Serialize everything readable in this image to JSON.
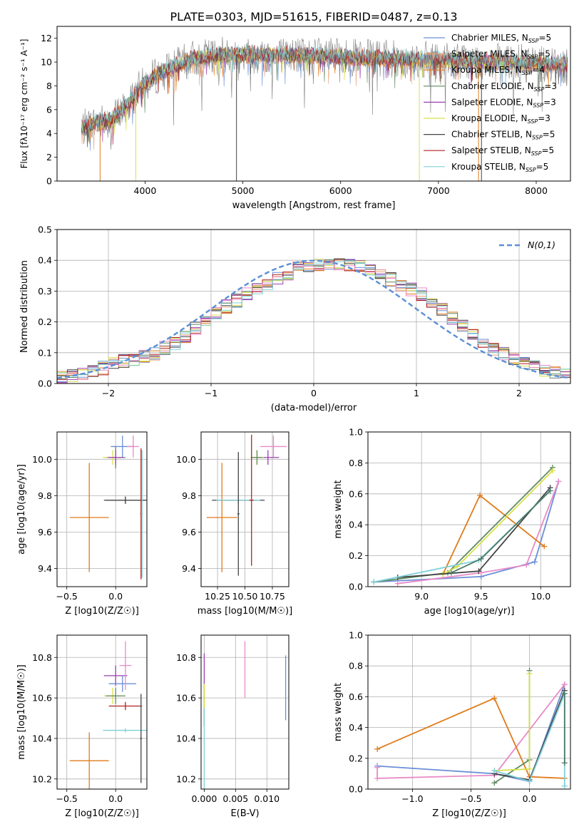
{
  "figure": {
    "title": "PLATE=0303, MJD=51615, FIBERID=0487, z=0.13"
  },
  "chart_data": [
    {
      "id": "spectrum",
      "type": "line",
      "xlabel": "wavelength [Angstrom, rest frame]",
      "ylabel": "Flux [fλ10⁻¹⁷ erg cm⁻² s⁻¹ A⁻¹]",
      "xlim": [
        3100,
        8350
      ],
      "ylim": [
        0,
        13
      ],
      "xticks": [
        4000,
        5000,
        6000,
        7000,
        8000
      ],
      "yticks": [
        0,
        2,
        4,
        6,
        8,
        10,
        12
      ],
      "grid": false,
      "legend_position": "top-right",
      "data_range": [
        3350,
        8320
      ],
      "continuum": [
        [
          3350,
          4.4
        ],
        [
          3500,
          4.9
        ],
        [
          3650,
          5.1
        ],
        [
          3800,
          6.2
        ],
        [
          3950,
          7.8
        ],
        [
          4100,
          8.8
        ],
        [
          4300,
          9.6
        ],
        [
          4500,
          10.3
        ],
        [
          4800,
          10.6
        ],
        [
          5200,
          10.6
        ],
        [
          5600,
          10.6
        ],
        [
          6000,
          10.4
        ],
        [
          6400,
          10.3
        ],
        [
          6800,
          10.2
        ],
        [
          7200,
          10.1
        ],
        [
          7600,
          10.0
        ],
        [
          8000,
          9.9
        ],
        [
          8320,
          9.8
        ]
      ],
      "series": [
        {
          "name": "Chabrier MILES, N_SSP=5",
          "color": "#6b8fd6"
        },
        {
          "name": "Salpeter MILES, N_SSP=5",
          "color": "#e8a07a"
        },
        {
          "name": "Kroupa MILES, N_SSP=4",
          "color": "#e07b1a"
        },
        {
          "name": "Chabrier ELODIE, N_SSP=3",
          "color": "#5f8a5f"
        },
        {
          "name": "Salpeter ELODIE, N_SSP=3",
          "color": "#9b3fb0"
        },
        {
          "name": "Kroupa ELODIE, N_SSP=3",
          "color": "#d8e04a"
        },
        {
          "name": "Chabrier STELIB, N_SSP=5",
          "color": "#444444"
        },
        {
          "name": "Salpeter STELIB, N_SSP=5",
          "color": "#b22222"
        },
        {
          "name": "Kroupa STELIB, N_SSP=5",
          "color": "#7fd0d8"
        }
      ],
      "data_series": {
        "name": "data",
        "color": "#808080"
      }
    },
    {
      "id": "residuals",
      "type": "area",
      "xlabel": "(data-model)/error",
      "ylabel": "Normed distribution",
      "xlim": [
        -2.5,
        2.5
      ],
      "ylim": [
        0,
        0.5
      ],
      "xticks": [
        -2,
        -1,
        0,
        1,
        2
      ],
      "yticks": [
        0.0,
        0.1,
        0.2,
        0.3,
        0.4,
        0.5
      ],
      "grid": true,
      "legend_position": "top-right",
      "reference_curve": {
        "name": "N(0,1)",
        "color": "#5b8fd6",
        "mean": 0,
        "sigma": 1
      },
      "bin_width": 0.1,
      "hist_profile": [
        [
          -2.5,
          0.02
        ],
        [
          -2.2,
          0.03
        ],
        [
          -1.9,
          0.07
        ],
        [
          -1.6,
          0.09
        ],
        [
          -1.3,
          0.14
        ],
        [
          -1.0,
          0.22
        ],
        [
          -0.7,
          0.28
        ],
        [
          -0.4,
          0.33
        ],
        [
          -0.1,
          0.38
        ],
        [
          0.2,
          0.39
        ],
        [
          0.5,
          0.38
        ],
        [
          0.8,
          0.33
        ],
        [
          1.1,
          0.28
        ],
        [
          1.4,
          0.2
        ],
        [
          1.7,
          0.12
        ],
        [
          2.0,
          0.07
        ],
        [
          2.3,
          0.04
        ],
        [
          2.5,
          0.03
        ]
      ],
      "hist_colors": [
        "#6b8fd6",
        "#e8a07a",
        "#e07b1a",
        "#5f8a5f",
        "#9b3fb0",
        "#d8e04a",
        "#444444",
        "#b22222",
        "#e88ac8",
        "#7fd0d8"
      ]
    },
    {
      "id": "age-vs-Z",
      "type": "scatter",
      "xlabel": "Z [log10(Z/Z☉)]",
      "ylabel": "age [log10(age/yr)]",
      "xlim": [
        -0.6,
        0.32
      ],
      "ylim": [
        9.3,
        10.15
      ],
      "xticks": [
        -0.5,
        0.0
      ],
      "yticks": [
        9.4,
        9.6,
        9.8,
        10.0
      ],
      "grid": true,
      "points": [
        {
          "x": -0.27,
          "y": 9.68,
          "xerr": 0.2,
          "yerr": 0.3,
          "color": "#e07b1a"
        },
        {
          "x": 0.07,
          "y": 10.07,
          "xerr": 0.12,
          "yerr": 0.06,
          "color": "#6b8fd6"
        },
        {
          "x": 0.18,
          "y": 10.07,
          "xerr": 0.06,
          "yerr": 0.06,
          "color": "#e88ac8"
        },
        {
          "x": 0.0,
          "y": 10.01,
          "xerr": 0.1,
          "yerr": 0.06,
          "color": "#5f8a5f"
        },
        {
          "x": -0.03,
          "y": 10.01,
          "xerr": 0.1,
          "yerr": 0.04,
          "color": "#d8e04a"
        },
        {
          "x": 0.0,
          "y": 10.01,
          "xerr": 0.08,
          "yerr": 0.04,
          "color": "#9b3fb0"
        },
        {
          "x": 0.1,
          "y": 9.775,
          "xerr": 0.2,
          "yerr": 0.02,
          "color": "#5f8a5f"
        },
        {
          "x": 0.1,
          "y": 9.775,
          "xerr": 0.22,
          "yerr": 0.02,
          "color": "#444444"
        },
        {
          "x": 0.26,
          "y": 9.7,
          "xerr": 0.01,
          "yerr": 0.36,
          "color": "#b22222"
        },
        {
          "x": 0.27,
          "y": 9.7,
          "xerr": 0.01,
          "yerr": 0.35,
          "color": "#7fd0d8"
        }
      ]
    },
    {
      "id": "age-vs-mass",
      "type": "scatter",
      "xlabel": "mass [log10(M/M☉)]",
      "ylabel": "",
      "xlim": [
        10.1,
        10.9
      ],
      "ylim": [
        9.3,
        10.15
      ],
      "xticks": [
        10.25,
        10.5,
        10.75
      ],
      "yticks": [
        9.4,
        9.6,
        9.8,
        10.0
      ],
      "grid": true,
      "points": [
        {
          "x": 10.29,
          "y": 9.68,
          "xerr": 0.14,
          "yerr": 0.3,
          "color": "#e07b1a"
        },
        {
          "x": 10.76,
          "y": 10.07,
          "xerr": 0.12,
          "yerr": 0.06,
          "color": "#e88ac8"
        },
        {
          "x": 10.71,
          "y": 10.01,
          "xerr": 0.1,
          "yerr": 0.04,
          "color": "#9b3fb0"
        },
        {
          "x": 10.61,
          "y": 10.01,
          "xerr": 0.06,
          "yerr": 0.04,
          "color": "#d8e04a"
        },
        {
          "x": 10.61,
          "y": 10.01,
          "xerr": 0.05,
          "yerr": 0.04,
          "color": "#5f8a5f"
        },
        {
          "x": 10.44,
          "y": 9.775,
          "xerr": 0.24,
          "yerr": 0.02,
          "color": "#444444"
        },
        {
          "x": 10.44,
          "y": 9.775,
          "xerr": 0.2,
          "yerr": 0.02,
          "color": "#7fd0d8"
        },
        {
          "x": 10.56,
          "y": 9.775,
          "xerr": 0.02,
          "yerr": 0.36,
          "color": "#b22222"
        },
        {
          "x": 10.44,
          "y": 9.7,
          "xerr": 0.01,
          "yerr": 0.34,
          "color": "#444444"
        }
      ]
    },
    {
      "id": "mass-weight-vs-age",
      "type": "line",
      "xlabel": "age [log10(age/yr)]",
      "ylabel": "mass weight",
      "xlim": [
        8.55,
        10.25
      ],
      "ylim": [
        0,
        1.0
      ],
      "xticks": [
        9.0,
        9.5,
        10.0
      ],
      "yticks": [
        0.0,
        0.2,
        0.4,
        0.6,
        0.8,
        1.0
      ],
      "grid": true,
      "series": [
        {
          "color": "#6b8fd6",
          "x": [
            8.6,
            9.5,
            9.95,
            10.15
          ],
          "y": [
            0.03,
            0.065,
            0.16,
            0.68
          ]
        },
        {
          "color": "#e88ac8",
          "x": [
            8.8,
            9.5,
            9.88,
            10.15
          ],
          "y": [
            0.02,
            0.09,
            0.14,
            0.68
          ]
        },
        {
          "color": "#e07b1a",
          "x": [
            9.18,
            9.49,
            10.03
          ],
          "y": [
            0.08,
            0.59,
            0.26
          ]
        },
        {
          "color": "#5f8a5f",
          "x": [
            8.6,
            9.22,
            10.1
          ],
          "y": [
            0.03,
            0.09,
            0.77
          ]
        },
        {
          "color": "#d8e04a",
          "x": [
            9.18,
            9.3,
            10.1
          ],
          "y": [
            0.08,
            0.13,
            0.75
          ]
        },
        {
          "color": "#444444",
          "x": [
            8.8,
            9.48,
            10.08
          ],
          "y": [
            0.06,
            0.1,
            0.64
          ]
        },
        {
          "color": "#7fd0d8",
          "x": [
            8.6,
            9.48,
            10.08
          ],
          "y": [
            0.03,
            0.17,
            0.62
          ]
        },
        {
          "color": "#4a7a6a",
          "x": [
            9.25,
            9.5,
            10.08
          ],
          "y": [
            0.09,
            0.18,
            0.62
          ]
        }
      ]
    },
    {
      "id": "mass-vs-Z",
      "type": "scatter",
      "xlabel": "Z [log10(Z/Z☉)]",
      "ylabel": "mass [log10(M/M☉)]",
      "xlim": [
        -0.6,
        0.32
      ],
      "ylim": [
        10.15,
        10.91
      ],
      "xticks": [
        -0.5,
        0.0
      ],
      "yticks": [
        10.2,
        10.4,
        10.6,
        10.8
      ],
      "grid": true,
      "points": [
        {
          "x": -0.27,
          "y": 10.29,
          "xerr": 0.2,
          "yerr": 0.14,
          "color": "#e07b1a"
        },
        {
          "x": 0.0,
          "y": 10.71,
          "xerr": 0.12,
          "yerr": 0.05,
          "color": "#9b3fb0"
        },
        {
          "x": 0.07,
          "y": 10.67,
          "xerr": 0.14,
          "yerr": 0.04,
          "color": "#6b8fd6"
        },
        {
          "x": 0.1,
          "y": 10.76,
          "xerr": 0.06,
          "yerr": 0.12,
          "color": "#e88ac8"
        },
        {
          "x": -0.03,
          "y": 10.61,
          "xerr": 0.09,
          "yerr": 0.04,
          "color": "#d8e04a"
        },
        {
          "x": 0.0,
          "y": 10.61,
          "xerr": 0.1,
          "yerr": 0.04,
          "color": "#5f8a5f"
        },
        {
          "x": 0.1,
          "y": 10.56,
          "xerr": 0.17,
          "yerr": 0.02,
          "color": "#b22222"
        },
        {
          "x": 0.1,
          "y": 10.44,
          "xerr": 0.23,
          "yerr": 0.01,
          "color": "#7fd0d8"
        },
        {
          "x": 0.26,
          "y": 10.4,
          "xerr": 0.01,
          "yerr": 0.22,
          "color": "#444444"
        }
      ]
    },
    {
      "id": "mass-vs-EBV",
      "type": "scatter",
      "xlabel": "E(B-V)",
      "ylabel": "",
      "xlim": [
        -0.0005,
        0.0135
      ],
      "ylim": [
        10.15,
        10.91
      ],
      "xticks": [
        0.0,
        0.005,
        0.01
      ],
      "xtick_labels": [
        "0.000",
        "0.005",
        "0.010"
      ],
      "yticks": [
        10.2,
        10.4,
        10.6,
        10.8
      ],
      "grid": true,
      "points": [
        {
          "x": 0.0,
          "y": 10.7,
          "xerr": 0,
          "yerr": 0.12,
          "color": "#9b3fb0"
        },
        {
          "x": 0.0,
          "y": 10.56,
          "xerr": 0,
          "yerr": 0.1,
          "color": "#b22222"
        },
        {
          "x": 0.0,
          "y": 10.4,
          "xerr": 0,
          "yerr": 0.25,
          "color": "#7fd0d8"
        },
        {
          "x": 0.0,
          "y": 10.61,
          "xerr": 0,
          "yerr": 0.06,
          "color": "#d8e04a"
        },
        {
          "x": 0.0065,
          "y": 10.74,
          "xerr": 0,
          "yerr": 0.14,
          "color": "#e88ac8"
        },
        {
          "x": 0.013,
          "y": 10.65,
          "xerr": 0,
          "yerr": 0.16,
          "color": "#6b8fd6"
        }
      ]
    },
    {
      "id": "mass-weight-vs-Z",
      "type": "line",
      "xlabel": "Z [log10(Z/Z☉)]",
      "ylabel": "mass weight",
      "xlim": [
        -1.38,
        0.35
      ],
      "ylim": [
        0,
        1.0
      ],
      "xticks": [
        -1.0,
        -0.5,
        0.0
      ],
      "yticks": [
        0.0,
        0.2,
        0.4,
        0.6,
        0.8,
        1.0
      ],
      "grid": true,
      "series": [
        {
          "color": "#6b8fd6",
          "x": [
            -1.3,
            -0.3,
            0.0,
            0.3
          ],
          "y": [
            0.15,
            0.1,
            0.05,
            0.68
          ]
        },
        {
          "color": "#e88ac8",
          "x": [
            -1.3,
            -1.3,
            -0.3,
            0.3
          ],
          "y": [
            0.14,
            0.07,
            0.09,
            0.68
          ]
        },
        {
          "color": "#e07b1a",
          "x": [
            -1.3,
            -0.3,
            0.0,
            0.3
          ],
          "y": [
            0.26,
            0.59,
            0.08,
            0.07
          ]
        },
        {
          "color": "#5f8a5f",
          "x": [
            -0.3,
            0.0,
            0.0
          ],
          "y": [
            0.04,
            0.19,
            0.77
          ]
        },
        {
          "color": "#d8e04a",
          "x": [
            -0.3,
            0.0,
            0.0
          ],
          "y": [
            0.12,
            0.13,
            0.75
          ]
        },
        {
          "color": "#444444",
          "x": [
            -0.3,
            0.0,
            0.3
          ],
          "y": [
            0.1,
            0.06,
            0.64
          ]
        },
        {
          "color": "#7fd0d8",
          "x": [
            -0.3,
            0.0,
            0.3,
            0.3
          ],
          "y": [
            0.12,
            0.05,
            0.62,
            0.02
          ]
        },
        {
          "color": "#4a7a6a",
          "x": [
            0.3,
            0.3
          ],
          "y": [
            0.17,
            0.62
          ]
        }
      ]
    }
  ]
}
